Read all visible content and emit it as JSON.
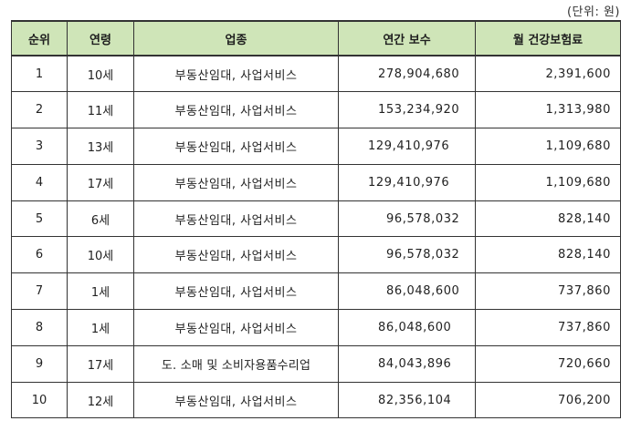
{
  "unit_note": "(단위: 원)",
  "columns": {
    "rank": "순위",
    "age": "연령",
    "industry": "업종",
    "annual_pay": "연간 보수",
    "monthly_insurance": "월 건강보험료"
  },
  "rows": [
    {
      "rank": "1",
      "age": "10세",
      "industry": "부동산임대, 사업서비스",
      "annual_pay": "278,904,680",
      "monthly_insurance": "2,391,600"
    },
    {
      "rank": "2",
      "age": "11세",
      "industry": "부동산임대, 사업서비스",
      "annual_pay": "153,234,920",
      "monthly_insurance": "1,313,980"
    },
    {
      "rank": "3",
      "age": "13세",
      "industry": "부동산임대, 사업서비스",
      "annual_pay": "129,410,976",
      "monthly_insurance": "1,109,680"
    },
    {
      "rank": "4",
      "age": "17세",
      "industry": "부동산임대, 사업서비스",
      "annual_pay": "129,410,976",
      "monthly_insurance": "1,109,680"
    },
    {
      "rank": "5",
      "age": "6세",
      "industry": "부동산임대, 사업서비스",
      "annual_pay": "96,578,032",
      "monthly_insurance": "828,140"
    },
    {
      "rank": "6",
      "age": "10세",
      "industry": "부동산임대, 사업서비스",
      "annual_pay": "96,578,032",
      "monthly_insurance": "828,140"
    },
    {
      "rank": "7",
      "age": "1세",
      "industry": "부동산임대, 사업서비스",
      "annual_pay": "86,048,600",
      "monthly_insurance": "737,860"
    },
    {
      "rank": "8",
      "age": "1세",
      "industry": "부동산임대, 사업서비스",
      "annual_pay": "86,048,600",
      "monthly_insurance": "737,860"
    },
    {
      "rank": "9",
      "age": "17세",
      "industry": "도. 소매 및 소비자용품수리업",
      "annual_pay": "84,043,896",
      "monthly_insurance": "720,660"
    },
    {
      "rank": "10",
      "age": "12세",
      "industry": "부동산임대, 사업서비스",
      "annual_pay": "82,356,104",
      "monthly_insurance": "706,200"
    }
  ],
  "colors": {
    "header_background": "#cfe5b8",
    "border": "#333333",
    "text": "#222222"
  }
}
